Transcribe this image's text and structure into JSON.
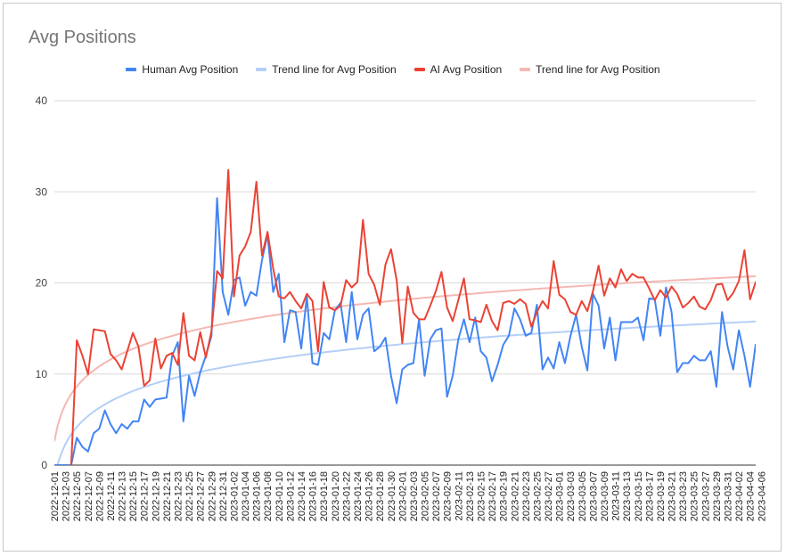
{
  "chart_data": {
    "type": "line",
    "title": "Avg Positions",
    "xlabel": "",
    "ylabel": "",
    "ylim": [
      0,
      40
    ],
    "yticks": [
      0,
      10,
      20,
      30,
      40
    ],
    "x_tick_labels": [
      "2022-12-01",
      "2022-12-03",
      "2022-12-05",
      "2022-12-07",
      "2022-12-09",
      "2022-12-11",
      "2022-12-13",
      "2022-12-15",
      "2022-12-17",
      "2022-12-19",
      "2022-12-21",
      "2022-12-23",
      "2022-12-25",
      "2022-12-27",
      "2022-12-29",
      "2022-12-31",
      "2023-01-02",
      "2023-01-04",
      "2023-01-06",
      "2023-01-08",
      "2023-01-10",
      "2023-01-12",
      "2023-01-14",
      "2023-01-16",
      "2023-01-18",
      "2023-01-20",
      "2023-01-22",
      "2023-01-24",
      "2023-01-26",
      "2023-01-28",
      "2023-01-30",
      "2023-02-01",
      "2023-02-03",
      "2023-02-05",
      "2023-02-07",
      "2023-02-09",
      "2023-02-11",
      "2023-02-13",
      "2023-02-15",
      "2023-02-17",
      "2023-02-19",
      "2023-02-21",
      "2023-02-23",
      "2023-02-25",
      "2023-02-27",
      "2023-03-01",
      "2023-03-03",
      "2023-03-05",
      "2023-03-07",
      "2023-03-09",
      "2023-03-11",
      "2023-03-13",
      "2023-03-15",
      "2023-03-17",
      "2023-03-19",
      "2023-03-21",
      "2023-03-23",
      "2023-03-25",
      "2023-03-27",
      "2023-03-29",
      "2023-03-31",
      "2023-04-02",
      "2023-04-04",
      "2023-04-06"
    ],
    "legend_position": "top-center",
    "grid": true,
    "series": [
      {
        "name": "Human Avg Position",
        "color": "#4285f4",
        "kind": "data",
        "values": [
          0,
          0,
          0,
          0,
          3,
          2,
          1.5,
          3.5,
          4,
          6,
          4.5,
          3.5,
          4.5,
          4,
          4.8,
          4.8,
          7.2,
          6.4,
          7.2,
          7.3,
          7.4,
          12,
          13.5,
          4.8,
          9.8,
          7.6,
          10.2,
          12,
          14.2,
          29.3,
          19,
          16.5,
          20.3,
          20.6,
          17.5,
          19,
          18.6,
          22.5,
          25.3,
          19,
          21,
          13.5,
          17,
          16.8,
          12.8,
          18.5,
          11.2,
          11,
          14.5,
          13.8,
          17,
          17.8,
          13.5,
          19,
          13.8,
          16.5,
          17.2,
          12.5,
          13,
          14,
          9.8,
          6.8,
          10.5,
          11,
          11.2,
          16,
          9.8,
          13.8,
          14.8,
          15,
          7.5,
          9.8,
          13.8,
          16,
          13.5,
          16.2,
          12.5,
          11.8,
          9.2,
          11,
          13.2,
          14.2,
          17.2,
          16,
          14.2,
          14.5,
          17.6,
          10.5,
          11.8,
          10.6,
          13.5,
          11.2,
          14.2,
          16.5,
          13,
          10.4,
          18.8,
          17.5,
          12.8,
          16.2,
          11.5,
          15.7,
          15.7,
          15.7,
          16.2,
          13.7,
          18.3,
          18.2,
          14.2,
          19.5,
          16.8,
          10.2,
          11.2,
          11.2,
          12,
          11.5,
          11.5,
          12.5,
          8.6,
          16.8,
          13,
          10.5,
          14.8,
          12,
          8.6,
          13.3
        ]
      },
      {
        "name": "Trend line for Avg Position",
        "color": "#b5cff7",
        "kind": "trend",
        "trend_model": {
          "a": -1.6,
          "b": 3.59
        }
      },
      {
        "name": "AI Avg Position",
        "color": "#ea4335",
        "kind": "data",
        "values": [
          null,
          null,
          null,
          0,
          13.7,
          12,
          10,
          14.9,
          14.8,
          14.7,
          12.2,
          11.5,
          10.5,
          12.5,
          14.5,
          13,
          8.7,
          9.3,
          13.9,
          10.6,
          12,
          12.3,
          11,
          16.7,
          12,
          11.5,
          14.6,
          11.8,
          14.7,
          21.3,
          20.5,
          32.4,
          18.5,
          23,
          24,
          25.6,
          31.1,
          23,
          25.6,
          21.6,
          18.5,
          18.3,
          19,
          18,
          17.2,
          18.8,
          18,
          12.5,
          20.1,
          17.3,
          17,
          17.5,
          20.3,
          19.5,
          20.1,
          26.9,
          21,
          19.8,
          17.6,
          22,
          23.7,
          20.3,
          13.4,
          19.6,
          16.7,
          16,
          16,
          17.5,
          19.1,
          21.2,
          17.3,
          15.8,
          18.1,
          20.5,
          16,
          15.9,
          15.7,
          17.6,
          15.8,
          14.8,
          17.8,
          18,
          17.7,
          18.2,
          17.7,
          15.2,
          16.8,
          18,
          17.2,
          22.4,
          18.7,
          18.2,
          16.8,
          16.5,
          18,
          16.9,
          19.1,
          21.9,
          18.6,
          20.5,
          19.5,
          21.5,
          20.2,
          21,
          20.6,
          20.6,
          19.4,
          18.1,
          19.2,
          18.4,
          19.6,
          18.8,
          17.3,
          17.8,
          18.5,
          17.4,
          17.1,
          18.1,
          19.8,
          19.9,
          18.1,
          18.9,
          20.2,
          23.6,
          18.2,
          20.1,
          20.1
        ]
      },
      {
        "name": "Trend line for Avg Position",
        "color": "#f4b8b3",
        "kind": "trend",
        "trend_model": {
          "a": 2.6,
          "b": 3.75
        }
      }
    ]
  }
}
